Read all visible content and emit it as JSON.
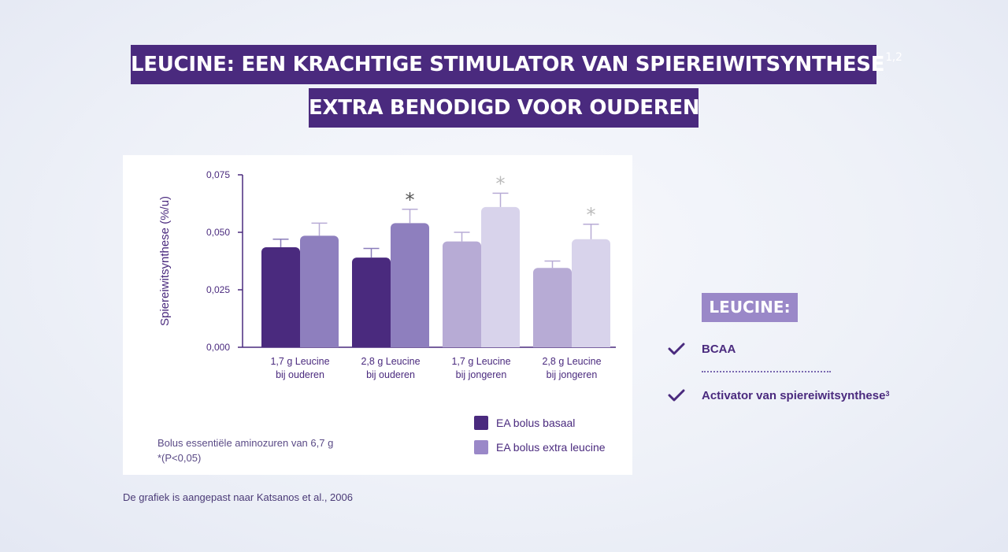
{
  "title_line1": "LEUCINE: EEN KRACHTIGE STIMULATOR VAN SPIEREIWITSYNTHESE",
  "title_line1_sup": "1,2",
  "title_line2": "EXTRA BENODIGD VOOR OUDEREN",
  "note_line1": "Bolus essentiële aminozuren van 6,7 g",
  "note_line2": "*(P<0,05)",
  "source": "De grafiek is aangepast naar Katsanos et al., 2006",
  "side": {
    "header": "LEUCINE:",
    "items": [
      {
        "label": "BCAA",
        "sup": ""
      },
      {
        "label": "Activator van spiereiwitsynthese",
        "sup": "3"
      }
    ]
  },
  "chart_data": {
    "type": "bar",
    "ylabel": "Spiereiwitsynthese (%/u)",
    "xlabel": "",
    "ylim": [
      0,
      0.075
    ],
    "yticks": [
      "0,000",
      "0,025",
      "0,050",
      "0,075"
    ],
    "ytick_values": [
      0,
      0.025,
      0.05,
      0.075
    ],
    "categories": [
      [
        "1,7 g Leucine",
        "bij ouderen"
      ],
      [
        "2,8 g Leucine",
        "bij ouderen"
      ],
      [
        "1,7 g Leucine",
        "bij jongeren"
      ],
      [
        "2,8 g Leucine",
        "bij jongeren"
      ]
    ],
    "series": [
      {
        "name": "EA bolus basaal",
        "values": [
          0.0435,
          0.039,
          0.046,
          0.0345
        ],
        "errors": [
          0.0035,
          0.004,
          0.004,
          0.003
        ],
        "colors": [
          "#4a2a7e",
          "#4a2a7e",
          "#b7abd5",
          "#b7abd5"
        ]
      },
      {
        "name": "EA bolus extra leucine",
        "values": [
          0.0485,
          0.054,
          0.061,
          0.047
        ],
        "errors": [
          0.0055,
          0.006,
          0.006,
          0.0065
        ],
        "colors": [
          "#8e7fbe",
          "#8e7fbe",
          "#d8d3eb",
          "#d8d3eb"
        ]
      }
    ],
    "significance_marker": "*",
    "significant": [
      false,
      true,
      true,
      true
    ],
    "significance_colors": [
      "#555555",
      "#555555",
      "#bbbbbb",
      "#bbbbbb"
    ],
    "legend": [
      {
        "label": "EA bolus basaal",
        "color": "#4a2a7e"
      },
      {
        "label": "EA bolus extra leucine",
        "color": "#9a88c8"
      }
    ],
    "legend_position": "bottom-right",
    "grid": false,
    "axis_color": "#4a2a7e",
    "text_color": "#4a2a7e"
  }
}
